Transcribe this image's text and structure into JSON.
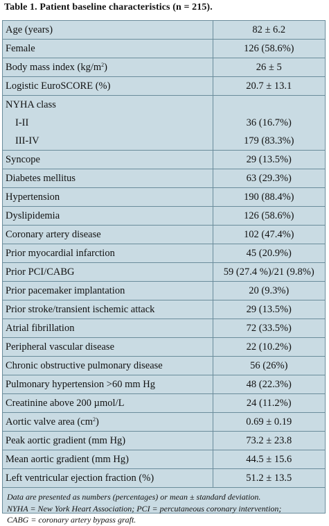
{
  "title": "Table 1. Patient baseline characteristics (n = 215).",
  "rows": [
    {
      "label": "Age (years)",
      "value": "82 ± 6.2"
    },
    {
      "label": "Female",
      "value": "126 (58.6%)"
    },
    {
      "label": "Body mass index (kg/m²)",
      "value": "26 ± 5"
    },
    {
      "label": "Logistic EuroSCORE (%)",
      "value": "20.7 ± 13.1"
    },
    {
      "label": "NYHA class",
      "value": ""
    },
    {
      "label": "I-II",
      "value": "36 (16.7%)"
    },
    {
      "label": "III-IV",
      "value": "179 (83.3%)"
    },
    {
      "label": "Syncope",
      "value": "29 (13.5%)"
    },
    {
      "label": "Diabetes mellitus",
      "value": "63 (29.3%)"
    },
    {
      "label": "Hypertension",
      "value": "190 (88.4%)"
    },
    {
      "label": "Dyslipidemia",
      "value": "126 (58.6%)"
    },
    {
      "label": "Coronary artery disease",
      "value": "102 (47.4%)"
    },
    {
      "label": "Prior myocardial infarction",
      "value": "45 (20.9%)"
    },
    {
      "label": "Prior PCI/CABG",
      "value": "59 (27.4 %)/21 (9.8%)"
    },
    {
      "label": "Prior pacemaker implantation",
      "value": "20 (9.3%)"
    },
    {
      "label": "Prior stroke/transient ischemic attack",
      "value": "29 (13.5%)"
    },
    {
      "label": "Atrial fibrillation",
      "value": "72 (33.5%)"
    },
    {
      "label": "Peripheral vascular disease",
      "value": "22 (10.2%)"
    },
    {
      "label": "Chronic obstructive pulmonary disease",
      "value": "56 (26%)"
    },
    {
      "label": "Pulmonary hypertension >60 mm Hg",
      "value": "48 (22.3%)"
    },
    {
      "label": "Creatinine above 200 µmol/L",
      "value": "24 (11.2%)"
    },
    {
      "label": "Aortic valve area (cm²)",
      "value": "0.69 ± 0.19"
    },
    {
      "label": "Peak aortic gradient (mm Hg)",
      "value": "73.2 ± 23.8"
    },
    {
      "label": "Mean aortic gradient (mm Hg)",
      "value": "44.5 ± 15.6"
    },
    {
      "label": "Left ventricular ejection fraction (%)",
      "value": "51.2 ± 13.5"
    }
  ],
  "footnote": [
    "Data are presented as numbers (percentages) or mean ± standard deviation.",
    "NYHA = New York Heart Association; PCI = percutaneous coronary intervention;",
    "CABG = coronary artery bypass graft."
  ]
}
